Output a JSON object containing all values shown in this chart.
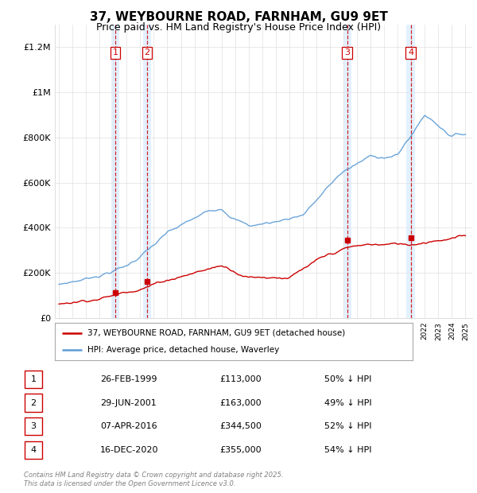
{
  "title": "37, WEYBOURNE ROAD, FARNHAM, GU9 9ET",
  "subtitle": "Price paid vs. HM Land Registry's House Price Index (HPI)",
  "ylabel_ticks": [
    "£0",
    "£200K",
    "£400K",
    "£600K",
    "£800K",
    "£1M",
    "£1.2M"
  ],
  "ylim": [
    0,
    1300000
  ],
  "xlim_start": 1994.7,
  "xlim_end": 2025.5,
  "sale_dates": [
    1999.15,
    2001.5,
    2016.27,
    2020.96
  ],
  "sale_prices": [
    113000,
    163000,
    344500,
    355000
  ],
  "sale_labels": [
    "1",
    "2",
    "3",
    "4"
  ],
  "legend_line1": "37, WEYBOURNE ROAD, FARNHAM, GU9 9ET (detached house)",
  "legend_line2": "HPI: Average price, detached house, Waverley",
  "table_rows": [
    [
      "1",
      "26-FEB-1999",
      "£113,000",
      "50% ↓ HPI"
    ],
    [
      "2",
      "29-JUN-2001",
      "£163,000",
      "49% ↓ HPI"
    ],
    [
      "3",
      "07-APR-2016",
      "£344,500",
      "52% ↓ HPI"
    ],
    [
      "4",
      "16-DEC-2020",
      "£355,000",
      "54% ↓ HPI"
    ]
  ],
  "footnote": "Contains HM Land Registry data © Crown copyright and database right 2025.\nThis data is licensed under the Open Government Licence v3.0.",
  "hpi_color": "#5b9bd5",
  "sale_color": "#cc0000",
  "shade_color": "#ddeeff",
  "background_color": "#ffffff",
  "grid_color": "#e0e0e0"
}
